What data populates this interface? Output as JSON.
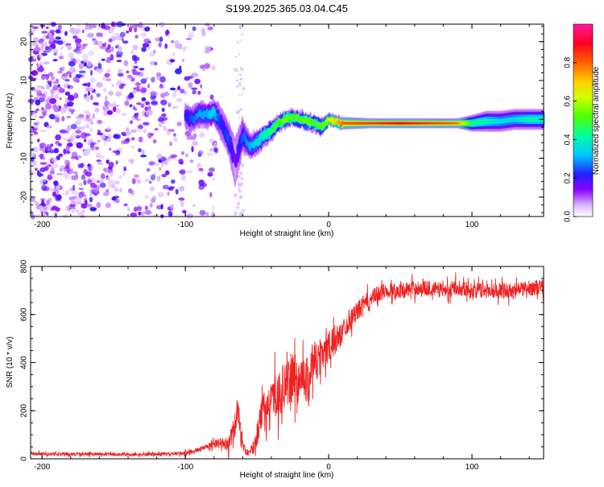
{
  "title": "S199.2025.365.03.04.C45",
  "chart_data": [
    {
      "type": "heatmap",
      "title": "S199.2025.365.03.04.C45",
      "xlabel": "Height of straight line (km)",
      "ylabel": "Frequency (Hz)",
      "xlim": [
        -208,
        150
      ],
      "ylim": [
        -25,
        24.5
      ],
      "xticks": [
        -200,
        -100,
        0,
        100
      ],
      "yticks": [
        -20,
        -10,
        0,
        10,
        20
      ],
      "xtick_labels": [
        "-200",
        "-100",
        "0",
        "100"
      ],
      "ytick_labels": [
        "-20",
        "-10",
        "0",
        "10",
        "20"
      ],
      "colorbar": {
        "label": "Normalized spectral amplitude",
        "range": [
          0,
          1
        ],
        "ticks": [
          0.0,
          0.2,
          0.4,
          0.6,
          0.8
        ],
        "tick_labels": [
          "0.0",
          "0.2",
          "0.4",
          "0.6",
          "0.8"
        ],
        "colormap": "rainbow (white-violet-blue-cyan-green-yellow-red-magenta)"
      },
      "ridge": {
        "description": "frequency ridge of the received signal vs straight-line height",
        "x": [
          -100,
          -95,
          -90,
          -85,
          -80,
          -75,
          -70,
          -65,
          -60,
          -55,
          -50,
          -45,
          -40,
          -35,
          -30,
          -25,
          -20,
          -15,
          -10,
          -5,
          0,
          10,
          30,
          50,
          70,
          90,
          100,
          110,
          120,
          130,
          140,
          150
        ],
        "y": [
          1,
          0,
          1.5,
          1,
          2,
          -1,
          -5,
          -11,
          -4,
          -7,
          -6,
          -4,
          -3,
          -1,
          0,
          0.5,
          0,
          -0.5,
          -1,
          -2,
          0,
          -1,
          -1,
          -1,
          -1,
          -1,
          -1,
          -0.5,
          -0.5,
          0,
          0,
          0
        ],
        "amplitude": [
          0.2,
          0.25,
          0.3,
          0.3,
          0.35,
          0.2,
          0.25,
          0.15,
          0.25,
          0.3,
          0.35,
          0.4,
          0.45,
          0.5,
          0.55,
          0.5,
          0.5,
          0.55,
          0.5,
          0.5,
          0.6,
          0.8,
          0.85,
          0.9,
          0.85,
          0.8,
          0.45,
          0.4,
          0.35,
          0.35,
          0.4,
          0.4
        ],
        "bandwidth_hz": [
          3,
          3,
          3,
          3,
          3,
          4,
          4,
          6,
          4,
          3,
          3,
          2.5,
          2.5,
          2,
          2,
          2,
          2,
          2,
          2,
          2,
          1.5,
          1.5,
          1.2,
          1.2,
          1.2,
          1.2,
          2,
          2.5,
          2.5,
          2.5,
          2.5,
          2.5
        ]
      },
      "noise_region": {
        "description": "scattered low-amplitude speckle noise where the signal is absent",
        "x_range": [
          -208,
          -75
        ],
        "amplitude_range": [
          0.0,
          0.2
        ]
      }
    },
    {
      "type": "line",
      "xlabel": "Height of straight line (km)",
      "ylabel": "SNR (10 * v/v)",
      "xlim": [
        -208,
        150
      ],
      "ylim": [
        0,
        800
      ],
      "xticks": [
        -200,
        -100,
        0,
        100
      ],
      "yticks": [
        0,
        200,
        400,
        600,
        800
      ],
      "xtick_labels": [
        "-200",
        "-100",
        "0",
        "100"
      ],
      "ytick_labels": [
        "0",
        "200",
        "400",
        "600",
        "800"
      ],
      "series": [
        {
          "name": "SNR",
          "color": "#ee2222",
          "x": [
            -208,
            -190,
            -170,
            -150,
            -130,
            -110,
            -100,
            -95,
            -90,
            -85,
            -80,
            -75,
            -70,
            -66,
            -63,
            -60,
            -58,
            -56,
            -53,
            -50,
            -47,
            -44,
            -41,
            -38,
            -35,
            -32,
            -29,
            -26,
            -23,
            -20,
            -17,
            -14,
            -11,
            -8,
            -5,
            -2,
            0,
            3,
            6,
            9,
            12,
            15,
            18,
            21,
            24,
            27,
            30,
            33,
            36,
            40,
            45,
            50,
            60,
            70,
            80,
            90,
            100,
            110,
            120,
            130,
            140,
            150
          ],
          "values": [
            20,
            20,
            20,
            18,
            18,
            20,
            25,
            30,
            40,
            50,
            60,
            70,
            55,
            120,
            210,
            60,
            30,
            25,
            40,
            100,
            180,
            220,
            220,
            270,
            260,
            300,
            300,
            340,
            330,
            330,
            350,
            320,
            420,
            400,
            450,
            450,
            460,
            480,
            500,
            520,
            560,
            580,
            600,
            620,
            640,
            650,
            665,
            680,
            690,
            700,
            700,
            700,
            710,
            710,
            700,
            715,
            700,
            700,
            700,
            700,
            710,
            715
          ],
          "noise_amplitude": [
            8,
            8,
            8,
            8,
            8,
            8,
            10,
            10,
            12,
            15,
            20,
            25,
            40,
            70,
            80,
            30,
            15,
            15,
            30,
            60,
            80,
            90,
            100,
            110,
            120,
            120,
            120,
            130,
            130,
            120,
            120,
            120,
            110,
            100,
            100,
            90,
            90,
            80,
            70,
            60,
            60,
            60,
            50,
            50,
            50,
            50,
            45,
            45,
            45,
            40,
            40,
            40,
            40,
            40,
            40,
            40,
            40,
            40,
            40,
            40,
            40,
            40
          ]
        }
      ]
    }
  ],
  "colors": {
    "line": "#ee2222",
    "axis": "#000000",
    "background": "#ffffff"
  }
}
